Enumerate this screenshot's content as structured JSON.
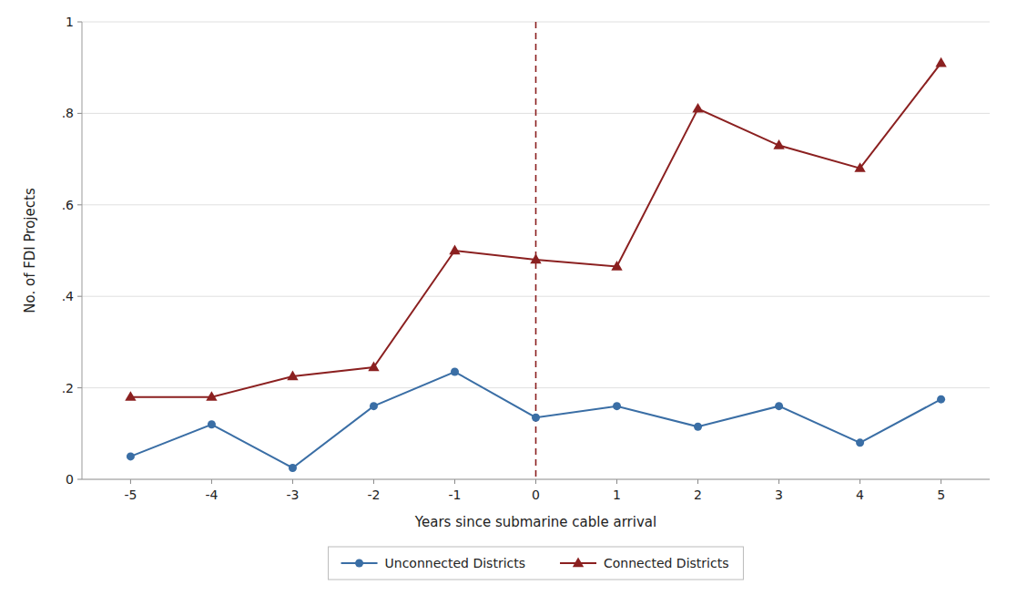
{
  "chart_data": {
    "type": "line",
    "x": [
      -5,
      -4,
      -3,
      -2,
      -1,
      0,
      1,
      2,
      3,
      4,
      5
    ],
    "series": [
      {
        "name": "Unconnected Districts",
        "color": "#3a6ea5",
        "marker": "circle",
        "values": [
          0.05,
          0.12,
          0.025,
          0.16,
          0.235,
          0.135,
          0.16,
          0.115,
          0.16,
          0.08,
          0.175
        ]
      },
      {
        "name": "Connected Districts",
        "color": "#8b2020",
        "marker": "triangle",
        "values": [
          0.18,
          0.18,
          0.225,
          0.245,
          0.5,
          0.48,
          0.465,
          0.81,
          0.73,
          0.68,
          0.91
        ]
      }
    ],
    "xlabel": "Years since submarine cable arrival",
    "ylabel": "No. of FDI Projects",
    "xlim": [
      -5.6,
      5.6
    ],
    "xticks": [
      -5,
      -4,
      -3,
      -2,
      -1,
      0,
      1,
      2,
      3,
      4,
      5
    ],
    "ylim": [
      0,
      1.0
    ],
    "yticks": [
      0,
      {
        "value": 0.2,
        "label": ".2"
      },
      {
        "value": 0.4,
        "label": ".4"
      },
      {
        "value": 0.6,
        "label": ".6"
      },
      {
        "value": 0.8,
        "label": ".8"
      },
      1
    ],
    "vlines": [
      {
        "x": 0,
        "color": "#8b2020",
        "line_style": "dashed"
      }
    ],
    "grid": "y",
    "legend": "bottom"
  }
}
